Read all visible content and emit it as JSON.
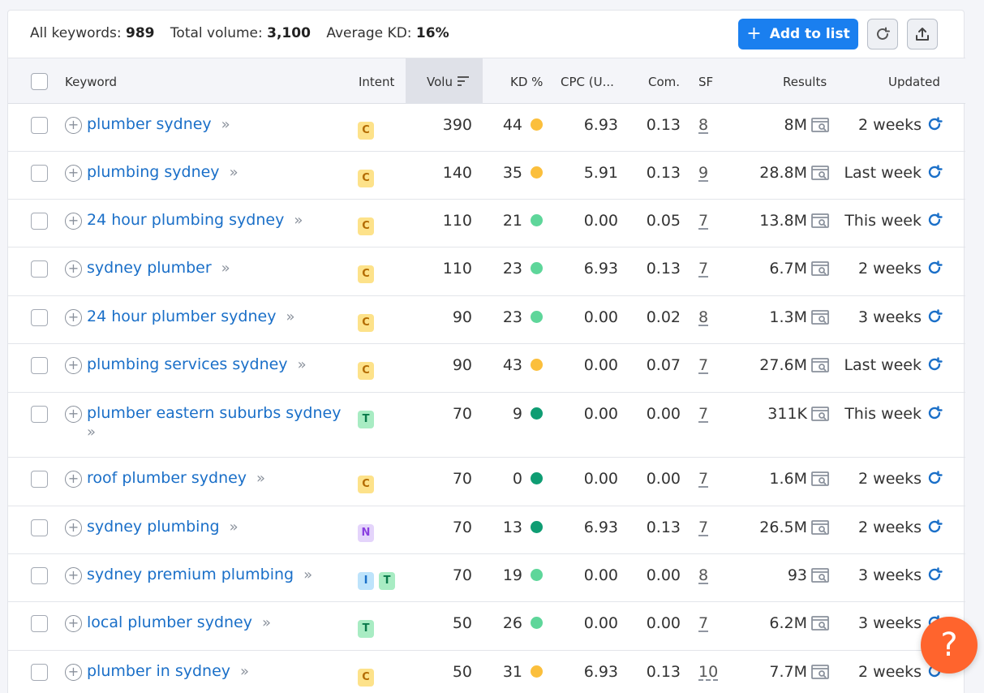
{
  "summary": {
    "all_keywords_label": "All keywords:",
    "all_keywords_value": "989",
    "total_volume_label": "Total volume:",
    "total_volume_value": "3,100",
    "avg_kd_label": "Average KD:",
    "avg_kd_value": "16%"
  },
  "toolbar": {
    "add_to_list_label": "Add to list",
    "refresh_icon": "refresh-icon",
    "export_icon": "export-icon"
  },
  "columns": {
    "keyword": "Keyword",
    "intent": "Intent",
    "volume": "Volu",
    "kd": "KD %",
    "cpc": "CPC (U...",
    "com": "Com.",
    "sf": "SF",
    "results": "Results",
    "updated": "Updated"
  },
  "colors": {
    "accent": "#1a7fef",
    "link": "#1a6fc8",
    "kd_yellow": "#fbbf3c",
    "kd_light_green": "#5ed69a",
    "kd_dark_green": "#0f9d73",
    "help": "#ff642d"
  },
  "rows": [
    {
      "keyword": "plumber sydney",
      "intents": [
        "C"
      ],
      "volume": "390",
      "kd": "44",
      "kd_color": "yellow",
      "cpc": "6.93",
      "com": "0.13",
      "sf": "8",
      "results": "8M",
      "updated": "2 weeks"
    },
    {
      "keyword": "plumbing sydney",
      "intents": [
        "C"
      ],
      "volume": "140",
      "kd": "35",
      "kd_color": "yellow",
      "cpc": "5.91",
      "com": "0.13",
      "sf": "9",
      "results": "28.8M",
      "updated": "Last week"
    },
    {
      "keyword": "24 hour plumbing sydney",
      "intents": [
        "C"
      ],
      "volume": "110",
      "kd": "21",
      "kd_color": "light-green",
      "cpc": "0.00",
      "com": "0.05",
      "sf": "7",
      "results": "13.8M",
      "updated": "This week"
    },
    {
      "keyword": "sydney plumber",
      "intents": [
        "C"
      ],
      "volume": "110",
      "kd": "23",
      "kd_color": "light-green",
      "cpc": "6.93",
      "com": "0.13",
      "sf": "7",
      "results": "6.7M",
      "updated": "2 weeks"
    },
    {
      "keyword": "24 hour plumber sydney",
      "intents": [
        "C"
      ],
      "volume": "90",
      "kd": "23",
      "kd_color": "light-green",
      "cpc": "0.00",
      "com": "0.02",
      "sf": "8",
      "results": "1.3M",
      "updated": "3 weeks"
    },
    {
      "keyword": "plumbing services sydney",
      "intents": [
        "C"
      ],
      "volume": "90",
      "kd": "43",
      "kd_color": "yellow",
      "cpc": "0.00",
      "com": "0.07",
      "sf": "7",
      "results": "27.6M",
      "updated": "Last week"
    },
    {
      "keyword": "plumber eastern suburbs sydney",
      "intents": [
        "T"
      ],
      "volume": "70",
      "kd": "9",
      "kd_color": "dark-green",
      "cpc": "0.00",
      "com": "0.00",
      "sf": "7",
      "results": "311K",
      "updated": "This week"
    },
    {
      "keyword": "roof plumber sydney",
      "intents": [
        "C"
      ],
      "volume": "70",
      "kd": "0",
      "kd_color": "dark-green",
      "cpc": "0.00",
      "com": "0.00",
      "sf": "7",
      "results": "1.6M",
      "updated": "2 weeks"
    },
    {
      "keyword": "sydney plumbing",
      "intents": [
        "N"
      ],
      "volume": "70",
      "kd": "13",
      "kd_color": "dark-green",
      "cpc": "6.93",
      "com": "0.13",
      "sf": "7",
      "results": "26.5M",
      "updated": "2 weeks"
    },
    {
      "keyword": "sydney premium plumbing",
      "intents": [
        "I",
        "T"
      ],
      "volume": "70",
      "kd": "19",
      "kd_color": "light-green",
      "cpc": "0.00",
      "com": "0.00",
      "sf": "8",
      "results": "93",
      "updated": "3 weeks"
    },
    {
      "keyword": "local plumber sydney",
      "intents": [
        "T"
      ],
      "volume": "50",
      "kd": "26",
      "kd_color": "light-green",
      "cpc": "0.00",
      "com": "0.00",
      "sf": "7",
      "results": "6.2M",
      "updated": "3 weeks"
    },
    {
      "keyword": "plumber in sydney",
      "intents": [
        "C"
      ],
      "volume": "50",
      "kd": "31",
      "kd_color": "yellow",
      "cpc": "6.93",
      "com": "0.13",
      "sf": "10",
      "results": "7.7M",
      "updated": "2 weeks"
    }
  ],
  "help_label": "?"
}
